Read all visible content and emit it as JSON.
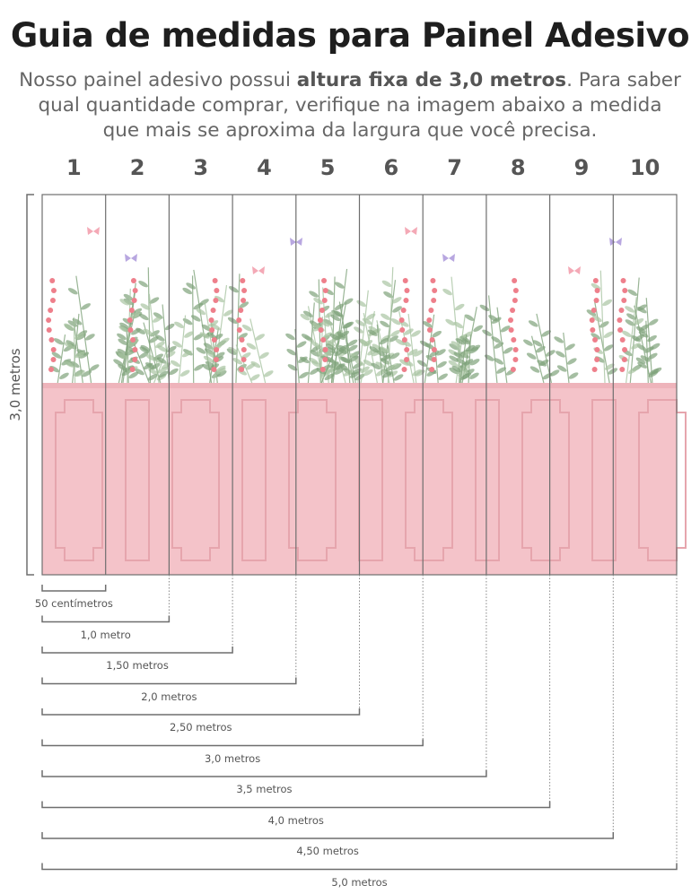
{
  "header": {
    "title": "Guia de medidas para Painel Adesivo",
    "subtitle_before": "Nosso painel adesivo possui ",
    "subtitle_bold": "altura fixa de 3,0 metros",
    "subtitle_after": ". Para saber qual quantidade comprar, verifique na imagem abaixo a medida que mais se aproxima da largura que você precisa."
  },
  "panel_numbers": [
    "1",
    "2",
    "3",
    "4",
    "5",
    "6",
    "7",
    "8",
    "9",
    "10"
  ],
  "height_label": "3,0 metros",
  "width_labels": [
    "50 centímetros",
    "1,0 metro",
    "1,50 metros",
    "2,0 metros",
    "2,50 metros",
    "3,0 metros",
    "3,5 metros",
    "4,0 metros",
    "4,50 metros",
    "5,0 metros"
  ],
  "colors": {
    "pink": "#f4c3c9",
    "line": "#6e6e6e",
    "leaf": "#7fa37a",
    "flower": "#ee7f8b"
  }
}
